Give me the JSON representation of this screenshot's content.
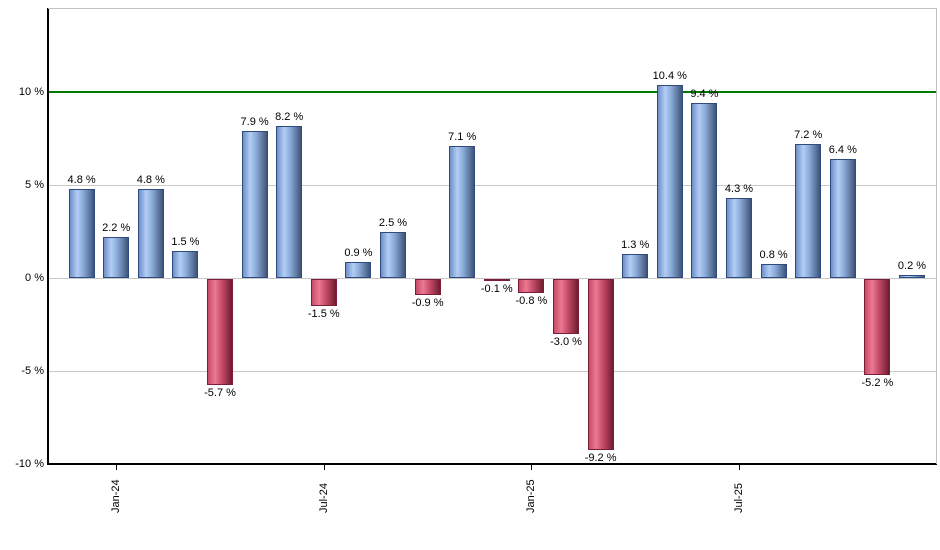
{
  "chart_data": {
    "type": "bar",
    "title": "",
    "unit": "%",
    "bars": [
      {
        "value": 4.8,
        "label": "4.8 %"
      },
      {
        "value": 2.2,
        "label": "2.2 %"
      },
      {
        "value": 4.8,
        "label": "4.8 %"
      },
      {
        "value": 1.5,
        "label": "1.5 %"
      },
      {
        "value": -5.7,
        "label": "-5.7 %"
      },
      {
        "value": 7.9,
        "label": "7.9 %"
      },
      {
        "value": 8.2,
        "label": "8.2 %"
      },
      {
        "value": -1.5,
        "label": "-1.5 %"
      },
      {
        "value": 0.9,
        "label": "0.9 %"
      },
      {
        "value": 2.5,
        "label": "2.5 %"
      },
      {
        "value": -0.9,
        "label": "-0.9 %"
      },
      {
        "value": 7.1,
        "label": "7.1 %"
      },
      {
        "value": -0.1,
        "label": "-0.1 %"
      },
      {
        "value": -0.8,
        "label": "-0.8 %"
      },
      {
        "value": -3.0,
        "label": "-3.0 %"
      },
      {
        "value": -9.2,
        "label": "-9.2 %"
      },
      {
        "value": 1.3,
        "label": "1.3 %"
      },
      {
        "value": 10.4,
        "label": "10.4 %"
      },
      {
        "value": 9.4,
        "label": "9.4 %"
      },
      {
        "value": 4.3,
        "label": "4.3 %"
      },
      {
        "value": 0.8,
        "label": "0.8 %"
      },
      {
        "value": 7.2,
        "label": "7.2 %"
      },
      {
        "value": 6.4,
        "label": "6.4 %"
      },
      {
        "value": -5.2,
        "label": "-5.2 %"
      },
      {
        "value": 0.2,
        "label": "0.2 %"
      }
    ],
    "x_ticks": [
      {
        "slot": 1,
        "label": "Jan-24"
      },
      {
        "slot": 7,
        "label": "Jul-24"
      },
      {
        "slot": 13,
        "label": "Jan-25"
      },
      {
        "slot": 19,
        "label": "Jul-25"
      }
    ],
    "y_ticks": [
      {
        "value": 10,
        "label": "10 %"
      },
      {
        "value": 5,
        "label": "5 %"
      },
      {
        "value": 0,
        "label": "0 %"
      },
      {
        "value": -5,
        "label": "-5 %"
      },
      {
        "value": -10,
        "label": "-10 %"
      }
    ],
    "threshold_line": {
      "value": 10,
      "color": "#007a00"
    },
    "ylim": [
      -10,
      14.5
    ],
    "grid": true,
    "legend": false,
    "colors": {
      "positive_gradient": [
        "#6d8fc9",
        "#b3cdf4",
        "#8aaad9",
        "#3e5478"
      ],
      "positive_border": "#2f4a7d",
      "negative_gradient": [
        "#c84b68",
        "#ea7992",
        "#c94f6c",
        "#701c30"
      ],
      "negative_border": "#7a1d36",
      "gridline": "#c8c8c8",
      "axis": "#000000",
      "plot_border": "#c0c0c0"
    }
  }
}
